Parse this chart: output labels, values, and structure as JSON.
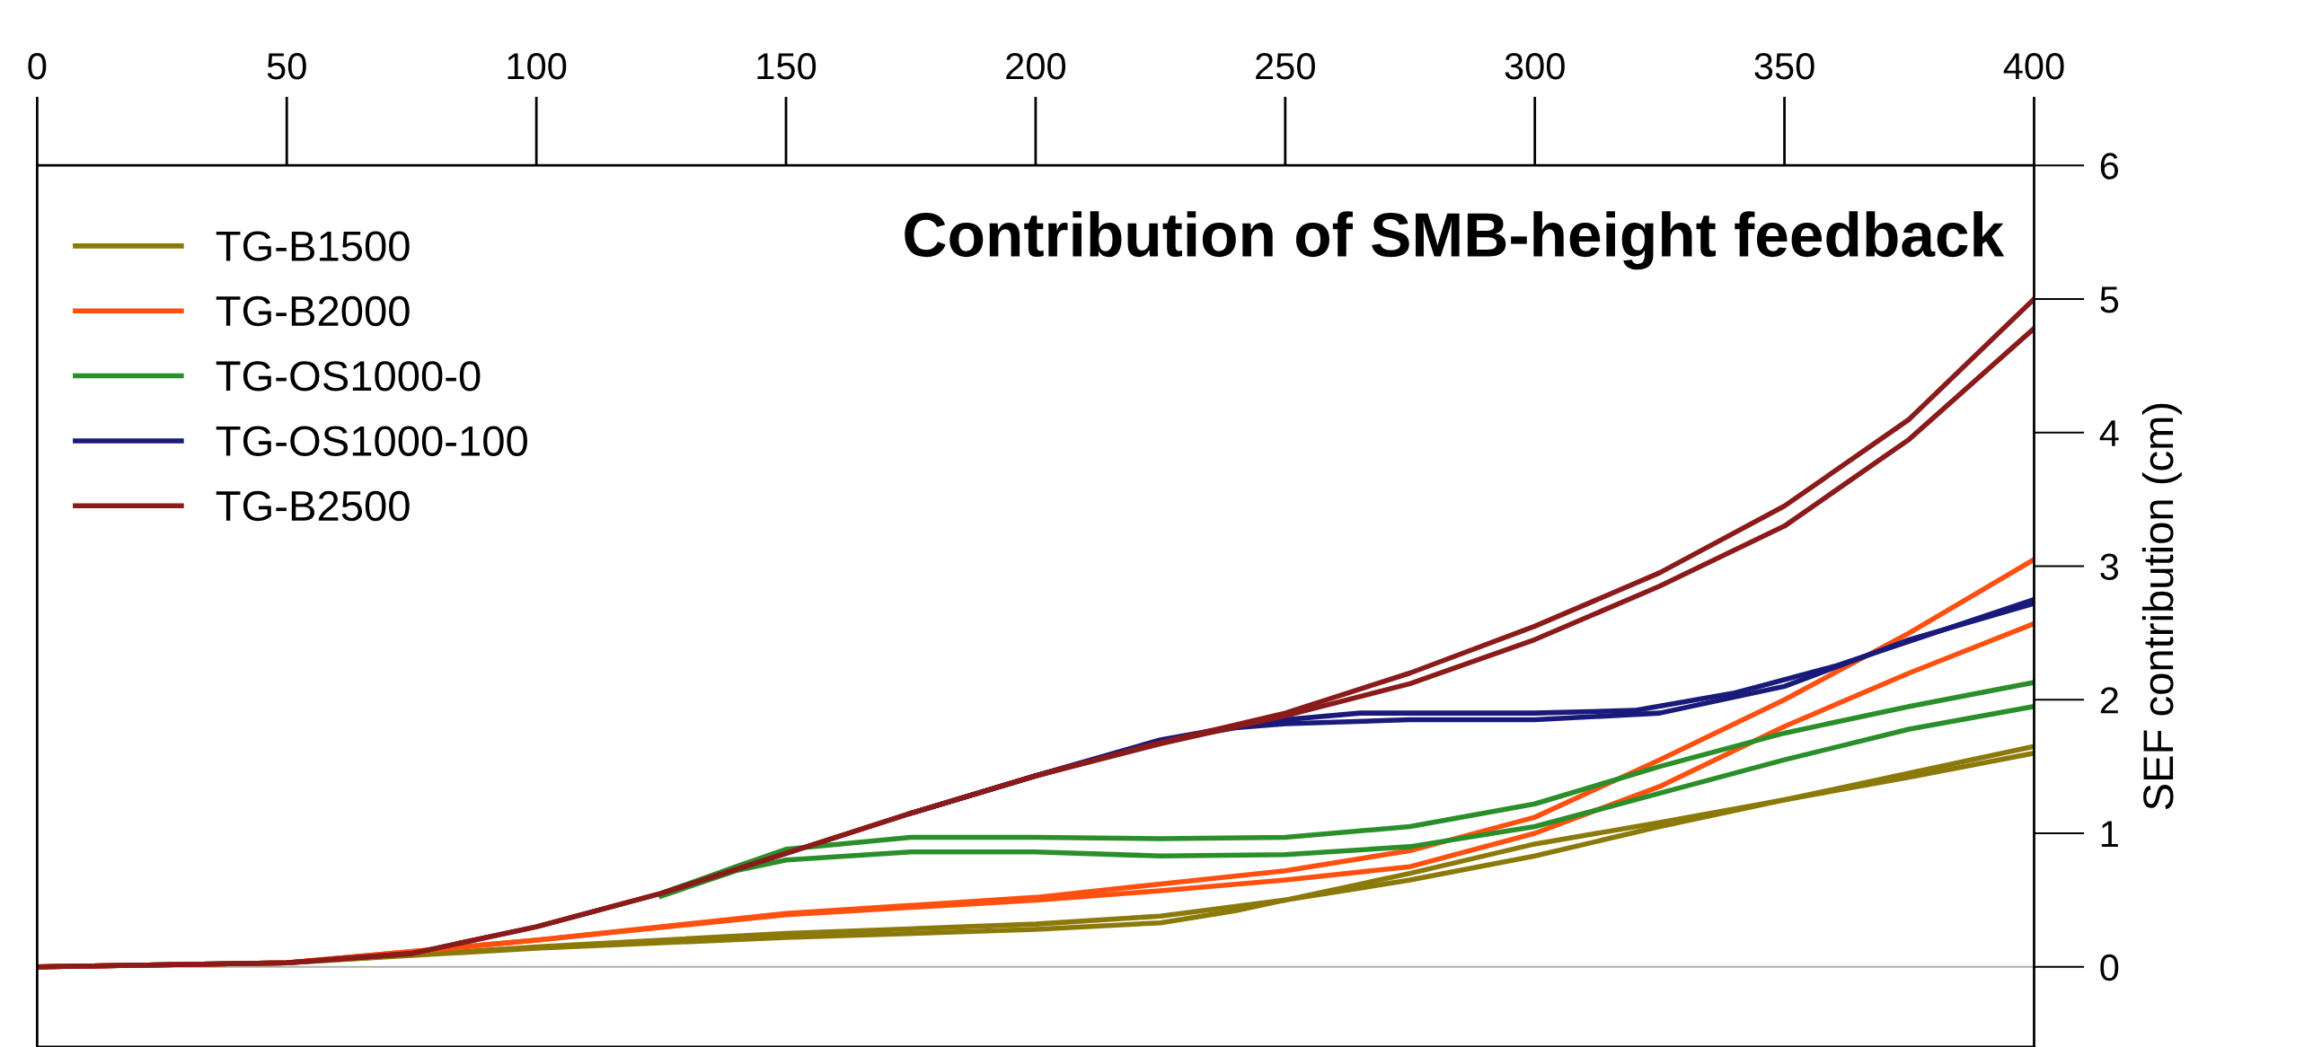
{
  "chart_data": {
    "type": "line",
    "title": "Contribution of SMB-height feedback",
    "ylabel": "SEF contribution (cm)",
    "xlim": [
      0,
      400
    ],
    "xticks": [
      0,
      50,
      100,
      150,
      200,
      250,
      300,
      350,
      400
    ],
    "ylim": [
      -0.6,
      6
    ],
    "yticks": [
      0,
      1,
      2,
      3,
      4,
      5,
      6
    ],
    "grid": false,
    "legend": "top left",
    "marker": "none",
    "line_style": "solid",
    "ref_lines": [
      {
        "axis": "y",
        "value": 0,
        "color": "#b0b0b0"
      }
    ],
    "series": [
      {
        "name": "TG-B1500",
        "color": "#8b7a0a",
        "x": [
          0,
          50,
          100,
          150,
          200,
          225,
          250,
          275,
          300,
          325,
          350,
          375,
          400
        ],
        "values": [
          0,
          0.03,
          0.15,
          0.25,
          0.32,
          0.38,
          0.5,
          0.7,
          0.92,
          1.08,
          1.25,
          1.45,
          1.65
        ]
      },
      {
        "color": "#8b7a0a",
        "x": [
          0,
          50,
          100,
          150,
          200,
          225,
          240,
          250,
          275,
          300,
          325,
          350,
          375,
          400
        ],
        "values": [
          0,
          0.03,
          0.14,
          0.22,
          0.28,
          0.33,
          0.42,
          0.5,
          0.65,
          0.83,
          1.05,
          1.25,
          1.42,
          1.6
        ]
      },
      {
        "name": "TG-B2000",
        "color": "#ff5010",
        "x": [
          0,
          50,
          100,
          150,
          200,
          225,
          250,
          275,
          300,
          325,
          350,
          375,
          400
        ],
        "values": [
          0,
          0.03,
          0.2,
          0.4,
          0.52,
          0.62,
          0.72,
          0.87,
          1.12,
          1.55,
          2.0,
          2.5,
          3.05
        ]
      },
      {
        "color": "#ff5010",
        "x": [
          0,
          50,
          100,
          150,
          200,
          225,
          250,
          275,
          300,
          325,
          350,
          375,
          400
        ],
        "values": [
          0,
          0.03,
          0.2,
          0.39,
          0.5,
          0.57,
          0.65,
          0.75,
          1.0,
          1.35,
          1.8,
          2.2,
          2.57
        ]
      },
      {
        "name": "TG-OS1000-0",
        "color": "#2a8f2a",
        "x": [
          125,
          140,
          150,
          175,
          200,
          225,
          250,
          275,
          300,
          325,
          350,
          375,
          400
        ],
        "values": [
          0.55,
          0.75,
          0.88,
          0.97,
          0.97,
          0.96,
          0.97,
          1.05,
          1.22,
          1.5,
          1.75,
          1.95,
          2.13
        ]
      },
      {
        "color": "#2a8f2a",
        "x": [
          125,
          140,
          150,
          175,
          200,
          225,
          250,
          275,
          300,
          325,
          350,
          375,
          400
        ],
        "values": [
          0.53,
          0.72,
          0.8,
          0.86,
          0.86,
          0.83,
          0.84,
          0.9,
          1.05,
          1.3,
          1.55,
          1.78,
          1.95
        ]
      },
      {
        "name": "TG-OS1000-100",
        "color": "#1a1a7a",
        "x": [
          175,
          200,
          225,
          240,
          250,
          265,
          300,
          320,
          340,
          360,
          380,
          400
        ],
        "values": [
          1.15,
          1.43,
          1.7,
          1.8,
          1.85,
          1.9,
          1.9,
          1.92,
          2.05,
          2.25,
          2.5,
          2.75
        ]
      },
      {
        "color": "#1a1a7a",
        "x": [
          175,
          200,
          225,
          240,
          250,
          275,
          300,
          325,
          350,
          375,
          400
        ],
        "values": [
          1.15,
          1.43,
          1.69,
          1.79,
          1.82,
          1.85,
          1.85,
          1.9,
          2.1,
          2.45,
          2.72
        ]
      },
      {
        "name": "TG-B2500",
        "color": "#8b1a1a",
        "x": [
          0,
          50,
          75,
          100,
          125,
          150,
          175,
          200,
          225,
          250,
          275,
          300,
          325,
          350,
          375,
          400
        ],
        "values": [
          0,
          0.03,
          0.1,
          0.3,
          0.55,
          0.85,
          1.15,
          1.43,
          1.68,
          1.9,
          2.2,
          2.55,
          2.95,
          3.45,
          4.1,
          5.0
        ]
      },
      {
        "color": "#8b1a1a",
        "x": [
          0,
          50,
          75,
          100,
          125,
          150,
          175,
          200,
          225,
          250,
          275,
          300,
          325,
          350,
          375,
          400
        ],
        "values": [
          0,
          0.03,
          0.1,
          0.3,
          0.55,
          0.85,
          1.15,
          1.43,
          1.67,
          1.88,
          2.12,
          2.45,
          2.85,
          3.3,
          3.95,
          4.78
        ]
      }
    ]
  }
}
